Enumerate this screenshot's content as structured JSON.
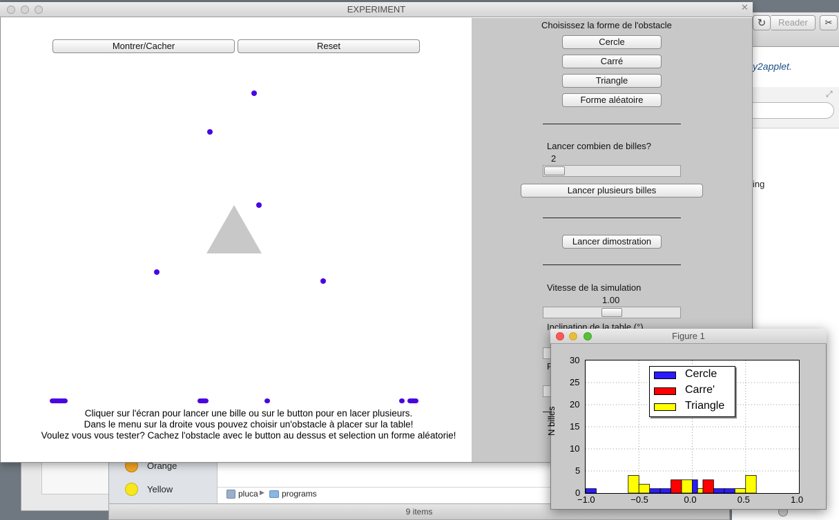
{
  "background": {
    "browser": {
      "reader_label": "Reader",
      "link_fragment": "y2applet.",
      "partial_text": "ing"
    },
    "finder": {
      "tags": [
        {
          "label": "Orange",
          "color": "#f5a623"
        },
        {
          "label": "Yellow",
          "color": "#f8e71c"
        }
      ],
      "path": [
        "pluca",
        "programs"
      ],
      "status": "9 items"
    }
  },
  "experiment": {
    "title": "EXPERIMENT",
    "buttons": {
      "show_hide": "Montrer/Cacher",
      "reset": "Reset"
    },
    "instructions": [
      "Cliquer sur l'écran pour lancer une bille ou sur le button pour en lacer plusieurs.",
      "Dans le menu sur la droite vous pouvez choisir un'obstacle à placer sur la table!",
      "Voulez vous vous tester? Cachez l'obstacle avec le button au dessus et selection un forme aléatorie!"
    ],
    "controls": {
      "shape_heading": "Choisissez la forme de l'obstacle",
      "shapes": [
        "Cercle",
        "Carré",
        "Triangle",
        "Forme aléatoire"
      ],
      "count_label": "Lancer combien de billes?",
      "count_value": "2",
      "count_fraction": 0.05,
      "launch_many": "Lancer plusieurs billes",
      "demo": "Lancer dimostration",
      "speed_label": "Vitesse de la simulation",
      "speed_value": "1.00",
      "speed_fraction": 0.5,
      "tilt_label": "Inclination de la table (°)"
    },
    "obstacle": {
      "shape": "triangle",
      "color": "#c8c8c8"
    },
    "ball_color": "#4a06e0"
  },
  "figure": {
    "title": "Figure 1",
    "ylabel": "N billes",
    "legend": [
      {
        "name": "Cercle",
        "color": "#2b1bff"
      },
      {
        "name": "Carre'",
        "color": "#ff0000"
      },
      {
        "name": "Triangle",
        "color": "#ffff00"
      }
    ]
  },
  "chart_data": {
    "type": "bar",
    "xlabel": "",
    "ylabel": "N billes",
    "xlim": [
      -1.0,
      1.0
    ],
    "ylim": [
      0,
      30
    ],
    "xticks": [
      "−1.0",
      "−0.5",
      "0.0",
      "0.5",
      "1.0"
    ],
    "yticks": [
      "0",
      "5",
      "10",
      "15",
      "20",
      "25",
      "30"
    ],
    "grid": true,
    "legend_position": "top-center",
    "bin_width": 0.1,
    "series": [
      {
        "name": "Cercle",
        "color": "#2b1bff",
        "bins": [
          [
            -1.0,
            1
          ],
          [
            -0.4,
            1
          ],
          [
            -0.3,
            1
          ],
          [
            0.0,
            3
          ],
          [
            0.2,
            1
          ],
          [
            0.3,
            1
          ]
        ]
      },
      {
        "name": "Carre'",
        "color": "#ff0000",
        "bins": [
          [
            -0.2,
            3
          ],
          [
            0.1,
            3
          ]
        ]
      },
      {
        "name": "Triangle",
        "color": "#ffff00",
        "bins": [
          [
            -0.6,
            4
          ],
          [
            -0.5,
            2
          ],
          [
            -0.1,
            3
          ],
          [
            0.0,
            1
          ],
          [
            0.4,
            1
          ],
          [
            0.5,
            4
          ]
        ]
      }
    ]
  }
}
